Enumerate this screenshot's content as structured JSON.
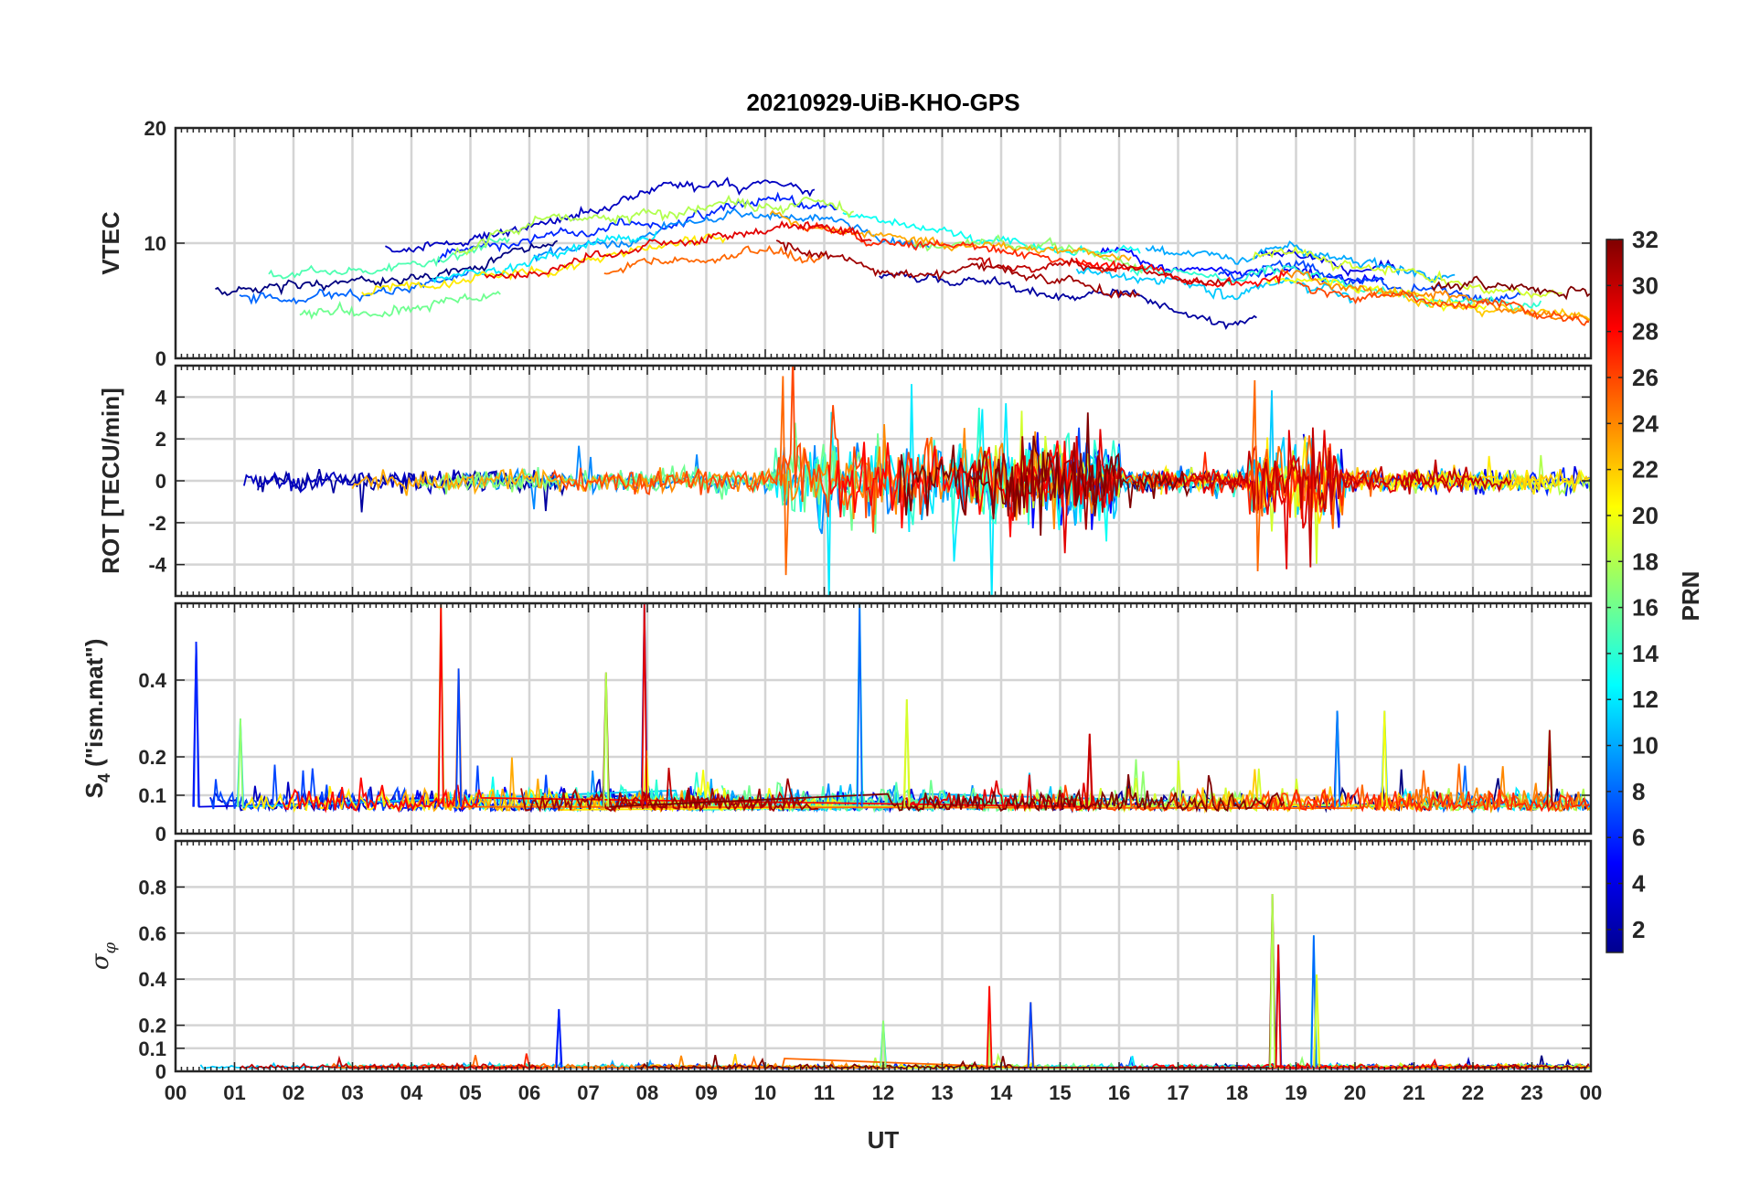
{
  "chart_data": {
    "type": "line",
    "title": "20210929-UiB-KHO-GPS",
    "xlabel": "UT",
    "x_tick_labels": [
      "00",
      "01",
      "02",
      "03",
      "04",
      "05",
      "06",
      "07",
      "08",
      "09",
      "10",
      "11",
      "12",
      "13",
      "14",
      "15",
      "16",
      "17",
      "18",
      "19",
      "20",
      "21",
      "22",
      "23",
      "00"
    ],
    "xlim": [
      0,
      24
    ],
    "panels": [
      {
        "id": "vtec",
        "ylabel": "VTEC",
        "ylim": [
          0,
          20
        ],
        "yticks": [
          0,
          10,
          20
        ],
        "ytick_labels": [
          "0",
          "10",
          "20"
        ],
        "description_of_series": "Vertical TEC per GPS PRN; rises from ~4-6 at 00 UT to ~11-13 near 10-11 UT, then decays to ~4-5 at 24 UT",
        "envelope": {
          "x": [
            0,
            2,
            4,
            6,
            8,
            10,
            11,
            12,
            14,
            16,
            18,
            19,
            20,
            22,
            24
          ],
          "y": [
            5,
            5.5,
            6.5,
            8.5,
            10.5,
            12,
            11.5,
            10,
            9.5,
            8.5,
            7,
            8,
            6.5,
            5.5,
            4.5
          ]
        }
      },
      {
        "id": "rot",
        "ylabel": "ROT [TECU/min]",
        "ylim": [
          -5.5,
          5.5
        ],
        "yticks": [
          -4,
          -2,
          0,
          2,
          4
        ],
        "ytick_labels": [
          "-4",
          "-2",
          "0",
          "2",
          "4"
        ],
        "activity_windows": [
          {
            "start": 10.2,
            "end": 16.0,
            "peak": 5
          },
          {
            "start": 18.2,
            "end": 19.8,
            "peak": 4.8
          }
        ]
      },
      {
        "id": "s4",
        "ylabel": "S4 (\"ism.mat\")",
        "ylabel_main": "S",
        "ylabel_sub": "4",
        "ylabel_tail": " (\"ism.mat\")",
        "ylim": [
          0,
          0.6
        ],
        "yticks": [
          0,
          0.1,
          0.2,
          0.4
        ],
        "ytick_labels": [
          "0",
          "0.1",
          "0.2",
          "0.4"
        ],
        "spikes": [
          {
            "x": 0.35,
            "y": 0.5
          },
          {
            "x": 1.1,
            "y": 0.3
          },
          {
            "x": 4.5,
            "y": 0.6
          },
          {
            "x": 4.8,
            "y": 0.43
          },
          {
            "x": 7.3,
            "y": 0.42
          },
          {
            "x": 7.95,
            "y": 0.6
          },
          {
            "x": 11.6,
            "y": 0.6
          },
          {
            "x": 12.4,
            "y": 0.35
          },
          {
            "x": 15.5,
            "y": 0.26
          },
          {
            "x": 19.7,
            "y": 0.32
          },
          {
            "x": 20.5,
            "y": 0.32
          },
          {
            "x": 23.3,
            "y": 0.27
          }
        ]
      },
      {
        "id": "sigma_phi",
        "ylabel": "σφ",
        "ylabel_main": "σ",
        "ylabel_sub": "φ",
        "ylim": [
          0,
          1.0
        ],
        "yticks": [
          0,
          0.1,
          0.2,
          0.4,
          0.6,
          0.8
        ],
        "ytick_labels": [
          "0",
          "0.1",
          "0.2",
          "0.4",
          "0.6",
          "0.8"
        ],
        "spikes": [
          {
            "x": 6.5,
            "y": 0.27
          },
          {
            "x": 12.0,
            "y": 0.22
          },
          {
            "x": 13.8,
            "y": 0.37
          },
          {
            "x": 14.5,
            "y": 0.3
          },
          {
            "x": 18.6,
            "y": 0.77
          },
          {
            "x": 18.7,
            "y": 0.55
          },
          {
            "x": 19.3,
            "y": 0.59
          },
          {
            "x": 19.35,
            "y": 0.42
          }
        ]
      }
    ],
    "colorbar": {
      "label": "PRN",
      "range": [
        1,
        32
      ],
      "ticks": [
        2,
        4,
        6,
        8,
        10,
        12,
        14,
        16,
        18,
        20,
        22,
        24,
        26,
        28,
        30,
        32
      ],
      "tick_labels": [
        "2",
        "4",
        "6",
        "8",
        "10",
        "12",
        "14",
        "16",
        "18",
        "20",
        "22",
        "24",
        "26",
        "28",
        "30",
        "32"
      ],
      "colormap": "jet"
    },
    "prns": [
      1,
      2,
      3,
      4,
      5,
      6,
      7,
      8,
      9,
      10,
      11,
      12,
      13,
      14,
      15,
      16,
      17,
      18,
      19,
      20,
      21,
      22,
      23,
      24,
      25,
      26,
      27,
      28,
      29,
      30,
      31,
      32
    ]
  }
}
